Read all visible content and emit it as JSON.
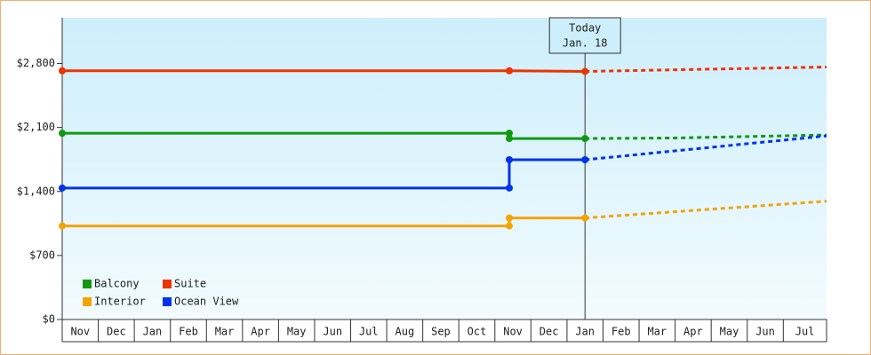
{
  "chart_data": {
    "type": "line",
    "xlim": [
      0,
      21.2
    ],
    "ylim": [
      0,
      3300
    ],
    "xticks": [
      {
        "value": 0,
        "label": "Nov"
      },
      {
        "value": 1,
        "label": "Dec"
      },
      {
        "value": 2,
        "label": "Jan"
      },
      {
        "value": 3,
        "label": "Feb"
      },
      {
        "value": 4,
        "label": "Mar"
      },
      {
        "value": 5,
        "label": "Apr"
      },
      {
        "value": 6,
        "label": "May"
      },
      {
        "value": 7,
        "label": "Jun"
      },
      {
        "value": 8,
        "label": "Jul"
      },
      {
        "value": 9,
        "label": "Aug"
      },
      {
        "value": 10,
        "label": "Sep"
      },
      {
        "value": 11,
        "label": "Oct"
      },
      {
        "value": 12,
        "label": "Nov"
      },
      {
        "value": 13,
        "label": "Dec"
      },
      {
        "value": 14,
        "label": "Jan"
      },
      {
        "value": 15,
        "label": "Feb"
      },
      {
        "value": 16,
        "label": "Mar"
      },
      {
        "value": 17,
        "label": "Apr"
      },
      {
        "value": 18,
        "label": "May"
      },
      {
        "value": 19,
        "label": "Jun"
      },
      {
        "value": 20,
        "label": "Jul"
      }
    ],
    "yticks": [
      {
        "value": 0,
        "label": "$0"
      },
      {
        "value": 700,
        "label": "$700"
      },
      {
        "value": 1400,
        "label": "$1,400"
      },
      {
        "value": 2100,
        "label": "$2,100"
      },
      {
        "value": 2800,
        "label": "$2,800"
      }
    ],
    "today": {
      "x": 14.5,
      "label": [
        "Today",
        "Jan. 18"
      ]
    },
    "series": [
      {
        "name": "Balcony",
        "color": "#119911",
        "x": [
          0,
          12.4,
          12.4,
          14.5
        ],
        "values": [
          2037,
          2037,
          1979,
          1979
        ],
        "forecast": {
          "x": [
            14.5,
            17,
            21.2
          ],
          "values": [
            1979,
            1985,
            2018
          ]
        }
      },
      {
        "name": "Suite",
        "color": "#ee3300",
        "x": [
          0,
          12.4,
          14.5
        ],
        "values": [
          2720,
          2720,
          2713
        ],
        "forecast": {
          "x": [
            14.5,
            21.2
          ],
          "values": [
            2713,
            2761
          ]
        }
      },
      {
        "name": "Interior",
        "color": "#f5a300",
        "x": [
          0,
          12.4,
          12.4,
          14.5
        ],
        "values": [
          1023,
          1023,
          1110,
          1110
        ],
        "forecast": {
          "x": [
            14.5,
            21.2
          ],
          "values": [
            1110,
            1294
          ]
        }
      },
      {
        "name": "Ocean View",
        "color": "#0033ee",
        "x": [
          0,
          12.4,
          12.4,
          14.5
        ],
        "values": [
          1438,
          1438,
          1747,
          1747
        ],
        "forecast": {
          "x": [
            14.5,
            21.2
          ],
          "values": [
            1747,
            2008
          ]
        }
      }
    ]
  }
}
